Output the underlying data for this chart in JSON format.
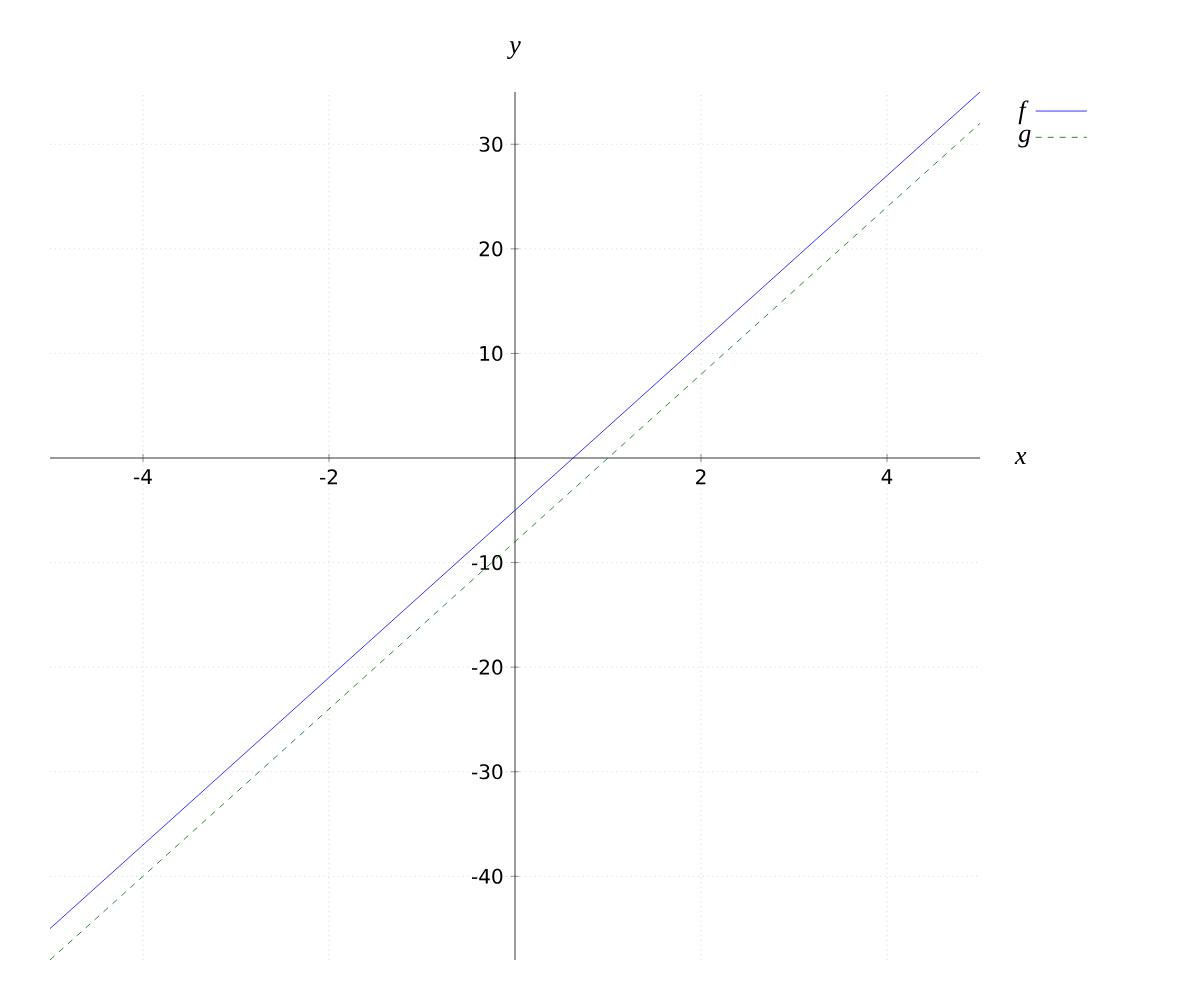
{
  "chart_data": {
    "type": "line",
    "xlabel": "x",
    "ylabel": "y",
    "series": [
      {
        "name": "f",
        "color": "#0000ff",
        "x": [
          -5,
          0,
          5
        ],
        "values": [
          -45,
          -5,
          35
        ],
        "line_style": "solid"
      },
      {
        "name": "g",
        "color": "#006400",
        "x": [
          -5,
          0,
          5
        ],
        "values": [
          -48,
          -8,
          32
        ],
        "line_style": "dashed"
      }
    ],
    "xlim": [
      -5,
      5
    ],
    "ylim": [
      -48,
      35
    ],
    "xticks": [
      -4,
      -2,
      2,
      4
    ],
    "yticks": [
      -40,
      -30,
      -20,
      -10,
      10,
      20,
      30
    ],
    "grid": true,
    "legend": "top right",
    "marker": "none"
  }
}
